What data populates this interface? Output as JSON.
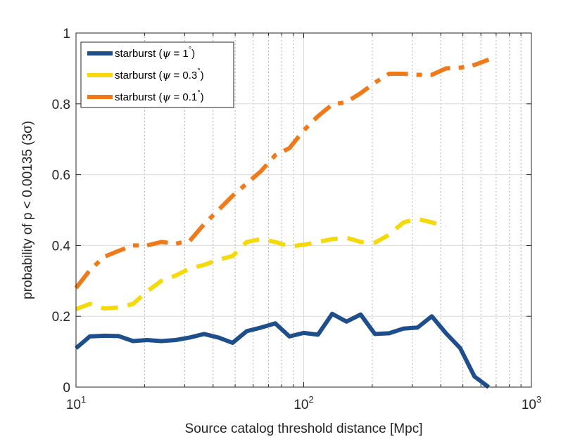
{
  "chart_data": {
    "type": "line",
    "title": "",
    "xlabel": "Source catalog threshold distance [Mpc]",
    "ylabel": "probability of p < 0.00135  (3σ)",
    "xscale": "log",
    "xlim": [
      10,
      1000
    ],
    "ylim": [
      0,
      1
    ],
    "grid": true,
    "legend_position": "top-left",
    "x_ticks": [
      {
        "value": 10,
        "base": "10",
        "exp": "1"
      },
      {
        "value": 100,
        "base": "10",
        "exp": "2"
      },
      {
        "value": 1000,
        "base": "10",
        "exp": "3"
      }
    ],
    "y_ticks": [
      {
        "value": 0,
        "label": "0"
      },
      {
        "value": 0.2,
        "label": "0.2"
      },
      {
        "value": 0.4,
        "label": "0.4"
      },
      {
        "value": 0.6,
        "label": "0.6"
      },
      {
        "value": 0.8,
        "label": "0.8"
      },
      {
        "value": 1,
        "label": "1"
      }
    ],
    "x": [
      10,
      11.5,
      13.3,
      15.4,
      17.8,
      20.5,
      23.7,
      27.4,
      31.6,
      36.5,
      42.2,
      48.7,
      56.2,
      64.9,
      75.0,
      86.6,
      100,
      115.5,
      133.4,
      154,
      177.8,
      205.4,
      237.1,
      273.8,
      316.2,
      365.2,
      421.7,
      487,
      562.3,
      649.4,
      749.9,
      866,
      1000
    ],
    "series": [
      {
        "name": "starburst (ψ = 1°)",
        "legend_main": "starburst (",
        "legend_sym": "ψ",
        "legend_rest": " = 1",
        "legend_deg": "°",
        "legend_close": ")",
        "color": "#1f4e8c",
        "dash": "solid",
        "values": [
          0.11,
          0.143,
          0.145,
          0.144,
          0.13,
          0.133,
          0.13,
          0.133,
          0.14,
          0.15,
          0.14,
          0.125,
          0.158,
          0.168,
          0.18,
          0.143,
          0.153,
          0.148,
          0.207,
          0.185,
          0.205,
          0.15,
          0.152,
          0.165,
          0.168,
          0.2,
          0.152,
          0.11,
          0.03,
          0.0,
          null,
          null,
          null
        ]
      },
      {
        "name": "starburst (ψ = 0.3°)",
        "legend_main": "starburst (",
        "legend_sym": "ψ",
        "legend_rest": " = 0.3",
        "legend_deg": "°",
        "legend_close": ")",
        "color": "#f5d90a",
        "dash": "dashed",
        "values": [
          0.22,
          0.235,
          0.222,
          0.225,
          0.235,
          0.27,
          0.3,
          0.315,
          0.335,
          0.345,
          0.36,
          0.37,
          0.41,
          0.418,
          0.41,
          0.397,
          0.402,
          0.41,
          0.418,
          0.422,
          0.41,
          0.408,
          0.43,
          0.465,
          0.475,
          0.465,
          0.455,
          null,
          null,
          null,
          null,
          null,
          null
        ]
      },
      {
        "name": "starburst (ψ = 0.1°)",
        "legend_main": "starburst (",
        "legend_sym": "ψ",
        "legend_rest": " = 0.1",
        "legend_deg": "°",
        "legend_close": ")",
        "color": "#f07a1a",
        "dash": "dashdot",
        "values": [
          0.28,
          0.33,
          0.368,
          0.385,
          0.4,
          0.4,
          0.41,
          0.405,
          0.413,
          0.46,
          0.5,
          0.54,
          0.575,
          0.61,
          0.655,
          0.675,
          0.725,
          0.765,
          0.798,
          0.805,
          0.83,
          0.86,
          0.885,
          0.885,
          0.882,
          0.882,
          0.9,
          0.902,
          0.91,
          0.925,
          null,
          null,
          null
        ]
      }
    ]
  }
}
